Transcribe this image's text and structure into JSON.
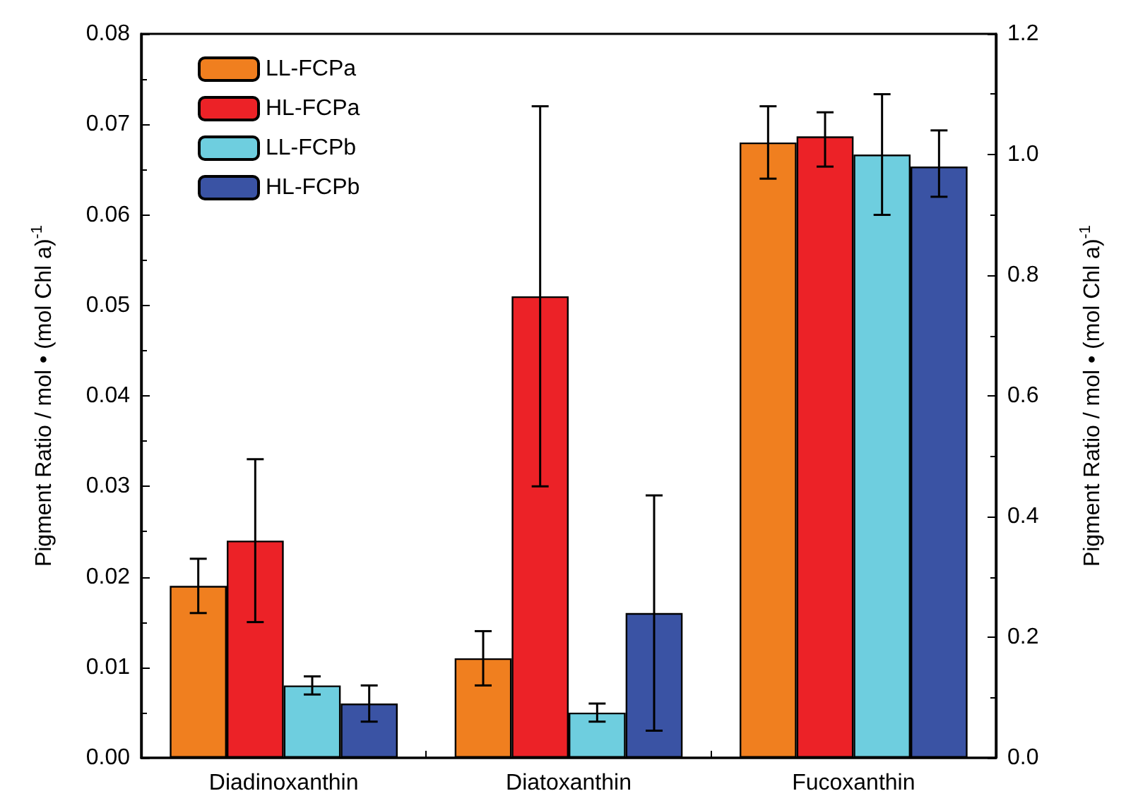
{
  "chart_data": {
    "type": "bar",
    "ylabel": "Pigment Ratio / mol • (mol Chl a)$^{-1}$",
    "y2label": "Pigment Ratio / mol • (mol Chl a)$^{-1}$",
    "categories": [
      "Diadinoxanthin",
      "Diatoxanthin",
      "Fucoxanthin"
    ],
    "series": [
      {
        "name": "LL-FCPa",
        "color": "#f07f1f",
        "values": [
          0.019,
          0.011,
          null
        ],
        "errors": [
          [
            0.016,
            0.022
          ],
          [
            0.008,
            0.014
          ],
          null
        ]
      },
      {
        "name": "HL-FCPa",
        "color": "#ec2227",
        "values": [
          0.024,
          0.051,
          null
        ],
        "errors": [
          [
            0.015,
            0.033
          ],
          [
            0.03,
            0.072
          ],
          null
        ]
      },
      {
        "name": "LL-FCPb",
        "color": "#6ecedf",
        "values": [
          0.008,
          0.005,
          null
        ],
        "errors": [
          [
            0.007,
            0.009
          ],
          [
            0.004,
            0.006
          ],
          null
        ]
      },
      {
        "name": "HL-FCPb",
        "color": "#3a53a4",
        "values": [
          0.006,
          0.016,
          null
        ],
        "errors": [
          [
            0.004,
            0.008
          ],
          [
            0.003,
            0.029
          ],
          null
        ]
      },
      {
        "color": "#f07f1f",
        "axis": "y2",
        "values": [
          null,
          null,
          1.02
        ],
        "errors": [
          null,
          null,
          [
            0.96,
            1.08
          ]
        ]
      },
      {
        "color": "#ec2227",
        "axis": "y2",
        "values": [
          null,
          null,
          1.03
        ],
        "errors": [
          null,
          null,
          [
            0.98,
            1.07
          ]
        ]
      },
      {
        "color": "#6ecedf",
        "axis": "y2",
        "values": [
          null,
          null,
          1.0
        ],
        "errors": [
          null,
          null,
          [
            0.9,
            1.1
          ]
        ]
      },
      {
        "color": "#3a53a4",
        "axis": "y2",
        "values": [
          null,
          null,
          0.98
        ],
        "errors": [
          null,
          null,
          [
            0.93,
            1.04
          ]
        ]
      }
    ],
    "ylim": [
      0,
      0.08
    ],
    "yticks": [
      {
        "value": 0,
        "label": "0.00"
      },
      {
        "value": 0.01,
        "label": "0.01"
      },
      {
        "value": 0.02,
        "label": "0.02"
      },
      {
        "value": 0.03,
        "label": "0.03"
      },
      {
        "value": 0.04,
        "label": "0.04"
      },
      {
        "value": 0.05,
        "label": "0.05"
      },
      {
        "value": 0.06,
        "label": "0.06"
      },
      {
        "value": 0.07,
        "label": "0.07"
      },
      {
        "value": 0.08,
        "label": "0.08"
      }
    ],
    "y2lim": [
      0,
      1.2
    ],
    "y2ticks": [
      {
        "value": 0,
        "label": "0.0"
      },
      {
        "value": 0.2,
        "label": "0.2"
      },
      {
        "value": 0.4,
        "label": "0.4"
      },
      {
        "value": 0.6,
        "label": "0.6"
      },
      {
        "value": 0.8,
        "label": "0.8"
      },
      {
        "value": 1.0,
        "label": "1.0"
      },
      {
        "value": 1.2,
        "label": "1.2"
      }
    ],
    "grid": false,
    "legend": "top left"
  }
}
